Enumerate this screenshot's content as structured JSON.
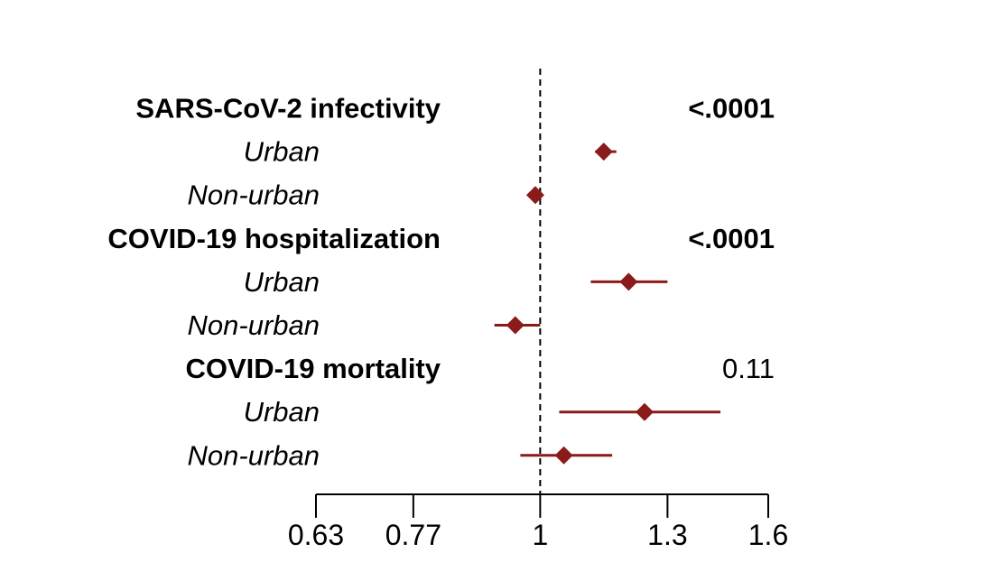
{
  "chart_data": {
    "type": "forest",
    "x_scale": "log",
    "xlim": [
      0.63,
      1.6
    ],
    "reference_line": 1,
    "ticks": [
      0.63,
      0.77,
      1,
      1.3,
      1.6
    ],
    "tick_labels": [
      "0.63",
      "0.77",
      "1",
      "1.3",
      "1.6"
    ],
    "marker_color": "#8b1a1a",
    "rows": [
      {
        "label": "SARS-CoV-2 infectivity",
        "kind": "group",
        "p_value": "<.0001",
        "p_bold": true
      },
      {
        "label": "Urban",
        "kind": "sub",
        "estimate": 1.14,
        "lower": 1.12,
        "upper": 1.17
      },
      {
        "label": "Non-urban",
        "kind": "sub",
        "estimate": 0.99,
        "lower": 0.98,
        "upper": 1.0
      },
      {
        "label": "COVID-19 hospitalization",
        "kind": "group",
        "p_value": "<.0001",
        "p_bold": true
      },
      {
        "label": "Urban",
        "kind": "sub",
        "estimate": 1.2,
        "lower": 1.11,
        "upper": 1.3
      },
      {
        "label": "Non-urban",
        "kind": "sub",
        "estimate": 0.95,
        "lower": 0.91,
        "upper": 1.0
      },
      {
        "label": "COVID-19 mortality",
        "kind": "group",
        "p_value": "0.11",
        "p_bold": false
      },
      {
        "label": "Urban",
        "kind": "sub",
        "estimate": 1.24,
        "lower": 1.04,
        "upper": 1.45
      },
      {
        "label": "Non-urban",
        "kind": "sub",
        "estimate": 1.05,
        "lower": 0.96,
        "upper": 1.16
      }
    ]
  }
}
